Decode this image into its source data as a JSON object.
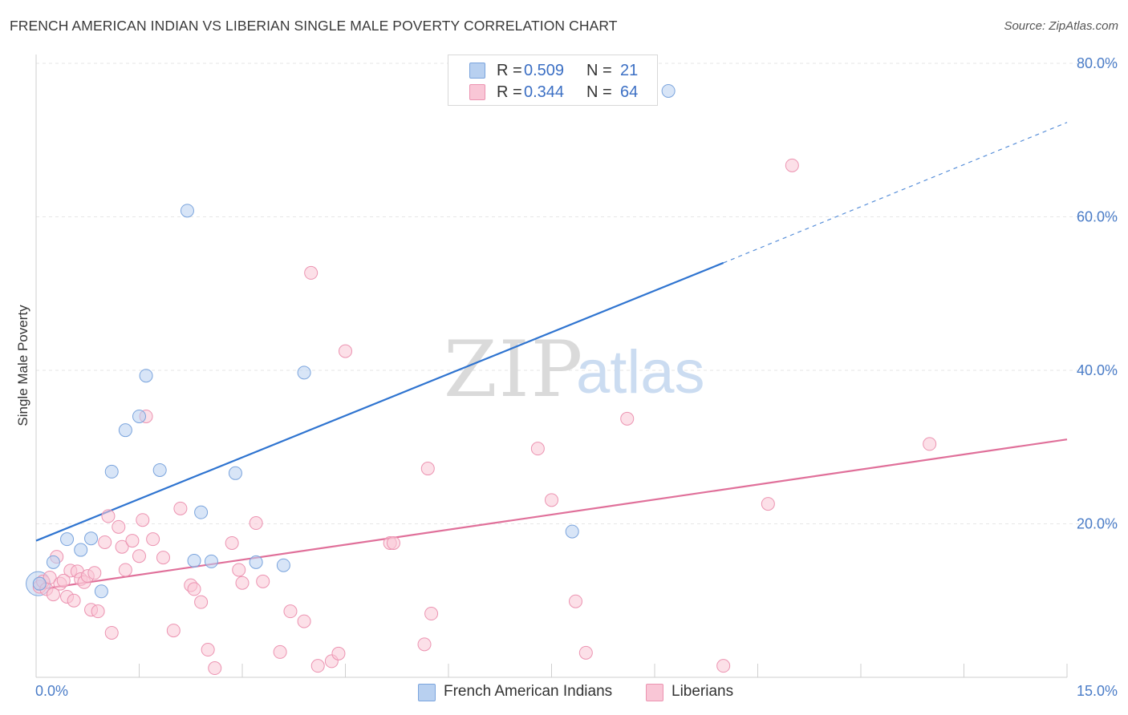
{
  "title": "FRENCH AMERICAN INDIAN VS LIBERIAN SINGLE MALE POVERTY CORRELATION CHART",
  "source": "Source: ZipAtlas.com",
  "legend": {
    "r_label": "R =",
    "n_label": "N =",
    "rows": [
      {
        "r": "0.509",
        "n": "21"
      },
      {
        "r": "0.344",
        "n": "64"
      }
    ]
  },
  "colors": {
    "blue_fill": "#b8d0f0",
    "blue_stroke": "#7aa4dd",
    "blue_line": "#2f74d0",
    "pink_fill": "#f9c6d6",
    "pink_stroke": "#ec93b1",
    "pink_line": "#e0709a",
    "tick_text": "#4a7cc7",
    "grid": "#e6e6e6"
  },
  "watermark": {
    "zip": "ZIP",
    "atlas": "atlas"
  },
  "chart_data": {
    "type": "scatter",
    "xlabel": "",
    "ylabel": "Single Male Poverty",
    "xlim": [
      0,
      15
    ],
    "ylim": [
      0,
      80
    ],
    "x_tick_labels": [
      {
        "v": 0,
        "t": "0.0%"
      },
      {
        "v": 15,
        "t": "15.0%"
      }
    ],
    "y_tick_labels": [
      {
        "v": 20,
        "t": "20.0%"
      },
      {
        "v": 40,
        "t": "40.0%"
      },
      {
        "v": 60,
        "t": "60.0%"
      },
      {
        "v": 80,
        "t": "80.0%"
      }
    ],
    "x_minor_ticks": [
      1.5,
      3.0,
      4.5,
      6.0,
      7.5,
      9.0,
      10.5,
      12.0,
      13.5,
      15.0
    ],
    "grid": true,
    "legend_position": "top-center",
    "series": [
      {
        "name": "French American Indians",
        "color_key": "blue",
        "points": [
          [
            0.05,
            12.2
          ],
          [
            0.25,
            15.0
          ],
          [
            0.45,
            18.0
          ],
          [
            0.65,
            16.6
          ],
          [
            0.8,
            18.1
          ],
          [
            0.95,
            11.2
          ],
          [
            1.1,
            26.8
          ],
          [
            1.3,
            32.2
          ],
          [
            1.5,
            34.0
          ],
          [
            1.6,
            39.3
          ],
          [
            1.8,
            27.0
          ],
          [
            2.2,
            60.8
          ],
          [
            2.3,
            15.2
          ],
          [
            2.4,
            21.5
          ],
          [
            2.55,
            15.1
          ],
          [
            2.9,
            26.6
          ],
          [
            3.2,
            15.0
          ],
          [
            3.6,
            14.6
          ],
          [
            3.9,
            39.7
          ],
          [
            7.8,
            19.0
          ],
          [
            9.2,
            76.4
          ]
        ],
        "trend": {
          "x0": 0,
          "y0": 17.8,
          "x1": 10.0,
          "y1": 54.0,
          "dash_to_x": 15.0,
          "dash_to_y": 72.3
        }
      },
      {
        "name": "Liberians",
        "color_key": "pink",
        "points": [
          [
            0.05,
            11.8
          ],
          [
            0.1,
            12.5
          ],
          [
            0.15,
            11.5
          ],
          [
            0.2,
            13.0
          ],
          [
            0.25,
            10.8
          ],
          [
            0.3,
            15.7
          ],
          [
            0.35,
            12.2
          ],
          [
            0.45,
            10.5
          ],
          [
            0.5,
            13.9
          ],
          [
            0.55,
            10.0
          ],
          [
            0.6,
            13.8
          ],
          [
            0.65,
            12.8
          ],
          [
            0.7,
            12.4
          ],
          [
            0.75,
            13.2
          ],
          [
            0.8,
            8.8
          ],
          [
            0.9,
            8.6
          ],
          [
            1.0,
            17.6
          ],
          [
            1.05,
            21.0
          ],
          [
            1.1,
            5.8
          ],
          [
            1.2,
            19.6
          ],
          [
            1.25,
            17.0
          ],
          [
            1.3,
            14.0
          ],
          [
            1.4,
            17.8
          ],
          [
            1.5,
            15.8
          ],
          [
            1.55,
            20.5
          ],
          [
            1.6,
            34.0
          ],
          [
            1.7,
            18.0
          ],
          [
            1.85,
            15.6
          ],
          [
            2.0,
            6.1
          ],
          [
            2.1,
            22.0
          ],
          [
            2.25,
            12.0
          ],
          [
            2.3,
            11.5
          ],
          [
            2.4,
            9.8
          ],
          [
            2.5,
            3.6
          ],
          [
            2.6,
            1.2
          ],
          [
            2.85,
            17.5
          ],
          [
            2.95,
            14.0
          ],
          [
            3.0,
            12.3
          ],
          [
            3.2,
            20.1
          ],
          [
            3.3,
            12.5
          ],
          [
            3.55,
            3.3
          ],
          [
            3.7,
            8.6
          ],
          [
            3.9,
            7.3
          ],
          [
            4.0,
            52.7
          ],
          [
            4.1,
            1.5
          ],
          [
            4.3,
            2.1
          ],
          [
            4.4,
            3.1
          ],
          [
            4.5,
            42.5
          ],
          [
            5.15,
            17.5
          ],
          [
            5.2,
            17.5
          ],
          [
            5.65,
            4.3
          ],
          [
            5.7,
            27.2
          ],
          [
            5.75,
            8.3
          ],
          [
            7.3,
            29.8
          ],
          [
            7.5,
            23.1
          ],
          [
            7.85,
            9.9
          ],
          [
            8.0,
            3.2
          ],
          [
            8.6,
            33.7
          ],
          [
            10.0,
            1.5
          ],
          [
            10.65,
            22.6
          ],
          [
            11.0,
            66.7
          ],
          [
            13.0,
            30.4
          ],
          [
            0.4,
            12.6
          ],
          [
            0.85,
            13.6
          ]
        ],
        "trend": {
          "x0": 0,
          "y0": 11.4,
          "x1": 15.0,
          "y1": 31.0
        }
      }
    ]
  }
}
